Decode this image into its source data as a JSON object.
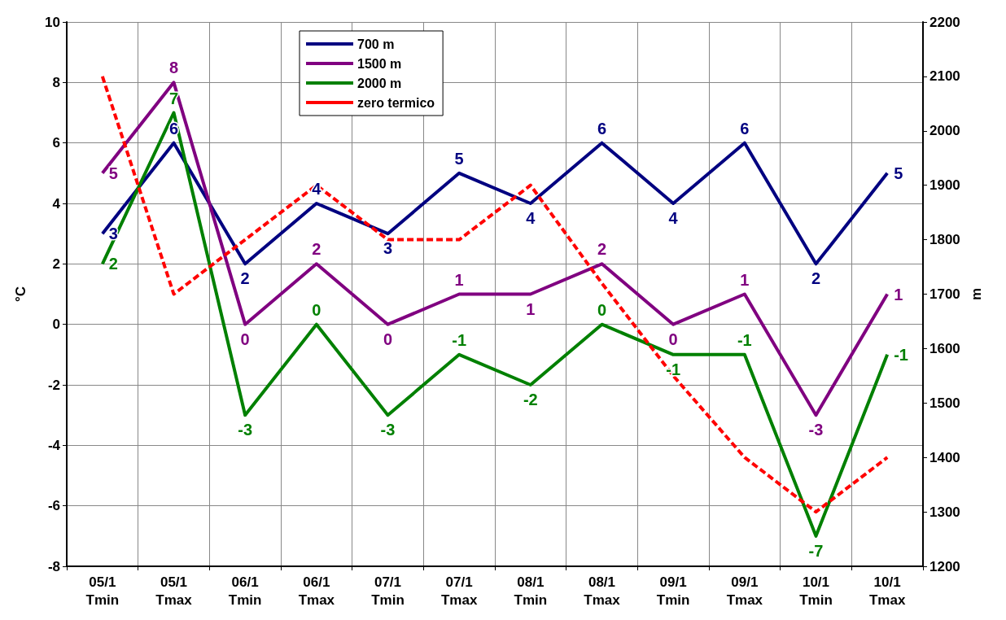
{
  "chart_data": {
    "type": "line",
    "categories": [
      "05/1\nTmin",
      "05/1\nTmax",
      "06/1\nTmin",
      "06/1\nTmax",
      "07/1\nTmin",
      "07/1\nTmax",
      "08/1\nTmin",
      "08/1\nTmax",
      "09/1\nTmin",
      "09/1\nTmax",
      "10/1\nTmin",
      "10/1\nTmax"
    ],
    "ylabel": "°C",
    "y2label": "m",
    "ylim": [
      -8,
      10
    ],
    "yticks": [
      -8,
      -6,
      -4,
      -2,
      0,
      2,
      4,
      6,
      8,
      10
    ],
    "y2lim": [
      1200,
      2200
    ],
    "y2ticks": [
      1200,
      1300,
      1400,
      1500,
      1600,
      1700,
      1800,
      1900,
      2000,
      2100,
      2200
    ],
    "grid": true,
    "legend": "top",
    "marker": "none",
    "series": [
      {
        "name": "700 m",
        "color": "#000080",
        "values": [
          3,
          6,
          2,
          4,
          3,
          5,
          4,
          6,
          4,
          6,
          2,
          5
        ],
        "value_labels": [
          "3",
          "6",
          "2",
          "4",
          "3",
          "5",
          "4",
          "6",
          "4",
          "6",
          "2",
          "5"
        ]
      },
      {
        "name": "1500 m",
        "color": "#800080",
        "values": [
          5,
          8,
          0,
          2,
          0,
          1,
          1,
          2,
          0,
          1,
          -3,
          1
        ],
        "value_labels": [
          "5",
          "8",
          "0",
          "2",
          "0",
          "1",
          "1",
          "2",
          "0",
          "1",
          "-3",
          "1"
        ]
      },
      {
        "name": "2000 m",
        "color": "#008000",
        "values": [
          2,
          7,
          -3,
          0,
          -3,
          -1,
          -2,
          0,
          -1,
          -1,
          -7,
          -1
        ],
        "value_labels": [
          "2",
          "7",
          "-3",
          "0",
          "-3",
          "-1",
          "-2",
          "0",
          "-1",
          "-1",
          "-7",
          "-1"
        ]
      },
      {
        "name": "zero termico",
        "color": "#ff0000",
        "axis": "y2",
        "line_style": "dashed",
        "values": [
          2100,
          1700,
          1800,
          1900,
          1800,
          1800,
          1900,
          1720,
          1550,
          1400,
          1300,
          1400
        ]
      }
    ]
  }
}
